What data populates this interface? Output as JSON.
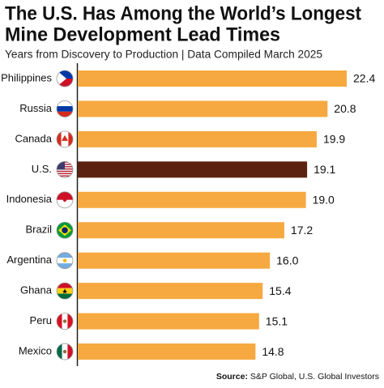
{
  "chart_data": {
    "type": "hbar",
    "title": [
      "The U.S. Has Among the World’s Longest",
      "Mine Development Lead Times"
    ],
    "subtitle": "Years from Discovery to Production | Data Compiled March 2025",
    "categories": [
      "Philippines",
      "Russia",
      "Canada",
      "U.S.",
      "Indonesia",
      "Brazil",
      "Argentina",
      "Ghana",
      "Peru",
      "Mexico"
    ],
    "values": [
      22.4,
      20.8,
      19.9,
      19.1,
      19.0,
      17.2,
      16.0,
      15.4,
      15.1,
      14.8
    ],
    "value_labels": [
      "22.4",
      "20.8",
      "19.9",
      "19.1",
      "19.0",
      "17.2",
      "16.0",
      "15.4",
      "15.1",
      "14.8"
    ],
    "colors": [
      "#f6a940",
      "#f6a940",
      "#f6a940",
      "#5b2211",
      "#f6a940",
      "#f6a940",
      "#f6a940",
      "#f6a940",
      "#f6a940",
      "#f6a940"
    ],
    "source_label": "Source:",
    "source": "S&P Global, U.S. Global Investors"
  }
}
